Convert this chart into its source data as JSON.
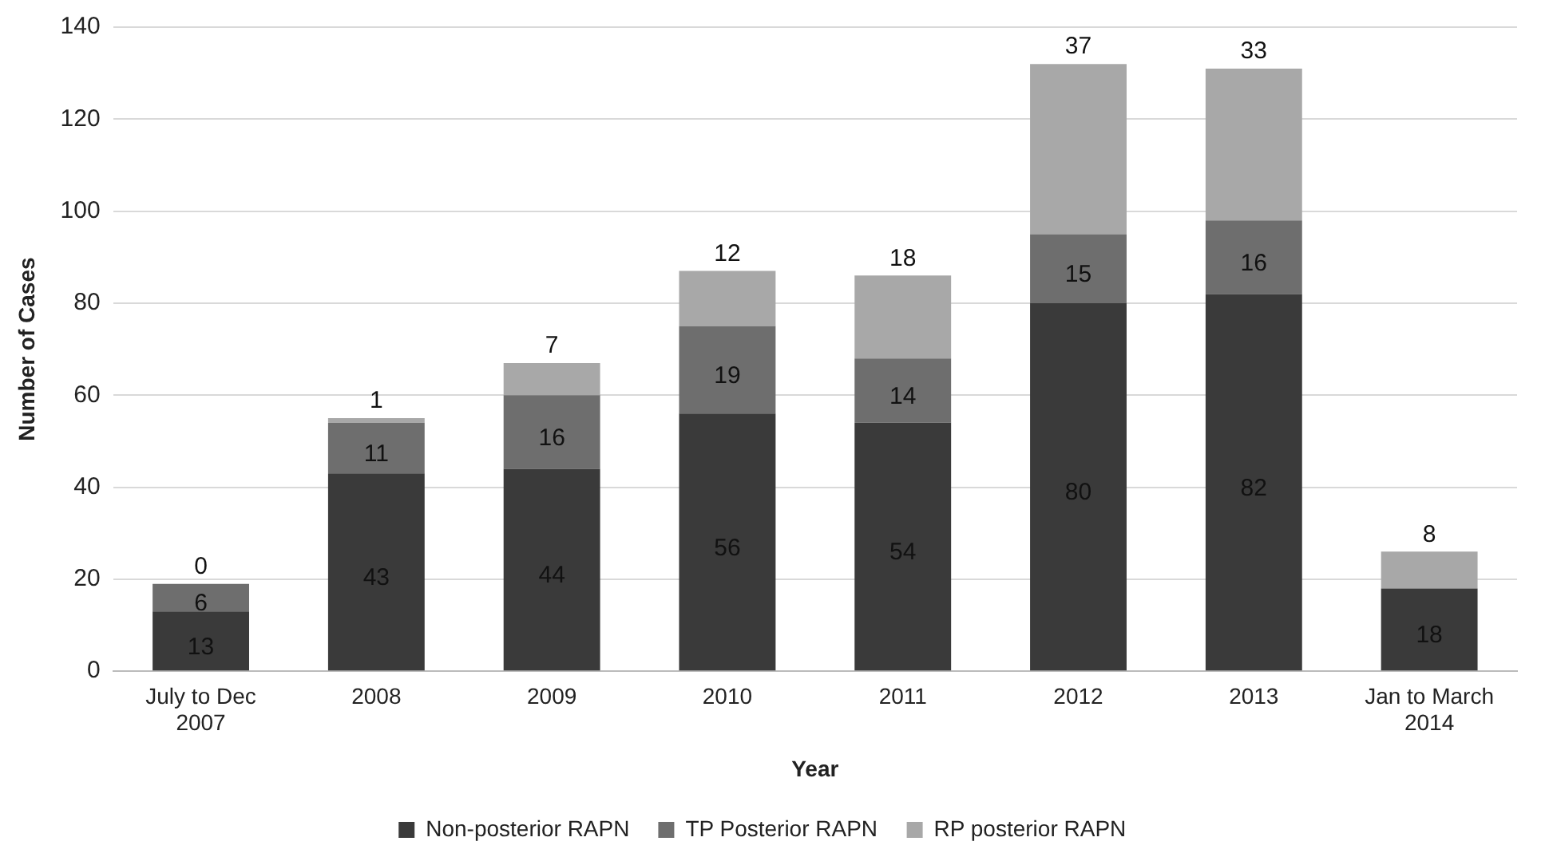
{
  "chart_data": {
    "type": "bar",
    "stacked": true,
    "xlabel": "Year",
    "ylabel": "Number of Cases",
    "categories": [
      "July to Dec 2007",
      "2008",
      "2009",
      "2010",
      "2011",
      "2012",
      "2013",
      "Jan to March 2014"
    ],
    "series": [
      {
        "name": "Non-posterior RAPN",
        "color": "#3a3a3a",
        "values": [
          13,
          43,
          44,
          56,
          54,
          80,
          82,
          18
        ],
        "value_labels": [
          "13",
          "43",
          "44",
          "56",
          "54",
          "80",
          "82",
          "18"
        ]
      },
      {
        "name": "TP Posterior RAPN",
        "color": "#6e6e6e",
        "values": [
          6,
          11,
          16,
          19,
          14,
          15,
          16,
          0
        ],
        "value_labels": [
          "6",
          "11",
          "16",
          "19",
          "14",
          "15",
          "16",
          null
        ]
      },
      {
        "name": "RP posterior RAPN",
        "color": "#a8a8a8",
        "values": [
          0,
          1,
          7,
          12,
          18,
          37,
          33,
          8
        ],
        "value_labels": [
          "0",
          "1",
          "7",
          "12",
          "18",
          "37",
          "33",
          "8"
        ]
      }
    ],
    "ylim": [
      0,
      140
    ],
    "yticks": [
      0,
      20,
      40,
      60,
      80,
      100,
      120,
      140
    ],
    "grid": "y",
    "legend": "bottom"
  }
}
